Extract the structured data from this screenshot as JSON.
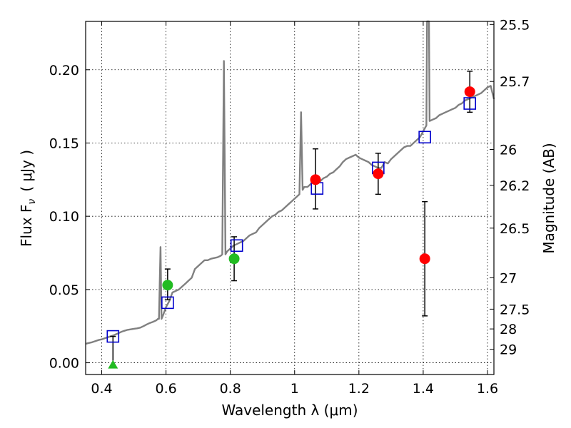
{
  "chart_data": {
    "type": "scatter",
    "title": "",
    "xlabel": "Wavelength  λ (μm)",
    "ylabel_left": "Flux  F",
    "ylabel_left_sub": "ν",
    "ylabel_left_unit": "( μJy )",
    "ylabel_right": "Magnitude (AB)",
    "xlim": [
      0.35,
      1.62
    ],
    "ylim": [
      -0.008,
      0.233
    ],
    "grid": true,
    "x_ticks": [
      0.4,
      0.6,
      0.8,
      1.0,
      1.2,
      1.4,
      1.6
    ],
    "x_tick_labels": [
      "0.4",
      "0.6",
      "0.8",
      "1",
      "1.2",
      "1.4",
      "1.6"
    ],
    "y_ticks": [
      0.0,
      0.05,
      0.1,
      0.15,
      0.2
    ],
    "y_tick_labels": [
      "0.00",
      "0.05",
      "0.10",
      "0.15",
      "0.20"
    ],
    "right_ticks": [
      {
        "label": "25.5",
        "flux": 0.2309
      },
      {
        "label": "25.7",
        "flux": 0.192
      },
      {
        "label": "26",
        "flux": 0.1456
      },
      {
        "label": "26.2",
        "flux": 0.1211
      },
      {
        "label": "26.5",
        "flux": 0.0919
      },
      {
        "label": "27",
        "flux": 0.058
      },
      {
        "label": "27.5",
        "flux": 0.0366
      },
      {
        "label": "28",
        "flux": 0.0231
      },
      {
        "label": "29",
        "flux": 0.0092
      }
    ],
    "colors": {
      "model": "#808080",
      "red": "#ff0000",
      "green": "#22bb22",
      "box": "#0000cc",
      "errorbar": "#000000"
    },
    "series": [
      {
        "kind": "model_spectrum",
        "points": [
          [
            0.35,
            0.013
          ],
          [
            0.36,
            0.0135
          ],
          [
            0.37,
            0.014
          ],
          [
            0.38,
            0.0148
          ],
          [
            0.39,
            0.0155
          ],
          [
            0.4,
            0.016
          ],
          [
            0.41,
            0.0168
          ],
          [
            0.42,
            0.0175
          ],
          [
            0.43,
            0.0182
          ],
          [
            0.44,
            0.019
          ],
          [
            0.45,
            0.02
          ],
          [
            0.46,
            0.021
          ],
          [
            0.47,
            0.0218
          ],
          [
            0.48,
            0.0225
          ],
          [
            0.49,
            0.0228
          ],
          [
            0.5,
            0.0232
          ],
          [
            0.51,
            0.0235
          ],
          [
            0.52,
            0.024
          ],
          [
            0.53,
            0.025
          ],
          [
            0.54,
            0.0262
          ],
          [
            0.55,
            0.0272
          ],
          [
            0.56,
            0.028
          ],
          [
            0.57,
            0.029
          ],
          [
            0.575,
            0.03
          ],
          [
            0.578,
            0.03
          ],
          [
            0.583,
            0.079
          ],
          [
            0.586,
            0.03
          ],
          [
            0.59,
            0.032
          ],
          [
            0.6,
            0.038
          ],
          [
            0.61,
            0.042
          ],
          [
            0.62,
            0.048
          ],
          [
            0.63,
            0.049
          ],
          [
            0.64,
            0.05
          ],
          [
            0.65,
            0.052
          ],
          [
            0.66,
            0.054
          ],
          [
            0.67,
            0.056
          ],
          [
            0.68,
            0.058
          ],
          [
            0.69,
            0.064
          ],
          [
            0.7,
            0.066
          ],
          [
            0.71,
            0.068
          ],
          [
            0.72,
            0.07
          ],
          [
            0.73,
            0.07
          ],
          [
            0.74,
            0.071
          ],
          [
            0.75,
            0.0715
          ],
          [
            0.76,
            0.072
          ],
          [
            0.77,
            0.073
          ],
          [
            0.775,
            0.074
          ],
          [
            0.78,
            0.206
          ],
          [
            0.785,
            0.074
          ],
          [
            0.79,
            0.076
          ],
          [
            0.8,
            0.078
          ],
          [
            0.81,
            0.08
          ],
          [
            0.82,
            0.081
          ],
          [
            0.83,
            0.082
          ],
          [
            0.84,
            0.083
          ],
          [
            0.85,
            0.085
          ],
          [
            0.86,
            0.087
          ],
          [
            0.87,
            0.088
          ],
          [
            0.88,
            0.089
          ],
          [
            0.89,
            0.092
          ],
          [
            0.9,
            0.094
          ],
          [
            0.91,
            0.096
          ],
          [
            0.92,
            0.098
          ],
          [
            0.93,
            0.1
          ],
          [
            0.94,
            0.101
          ],
          [
            0.95,
            0.103
          ],
          [
            0.96,
            0.104
          ],
          [
            0.97,
            0.106
          ],
          [
            0.98,
            0.108
          ],
          [
            0.99,
            0.11
          ],
          [
            1.0,
            0.112
          ],
          [
            1.01,
            0.114
          ],
          [
            1.015,
            0.115
          ],
          [
            1.02,
            0.171
          ],
          [
            1.025,
            0.118
          ],
          [
            1.03,
            0.12
          ],
          [
            1.04,
            0.12
          ],
          [
            1.05,
            0.122
          ],
          [
            1.06,
            0.125
          ],
          [
            1.07,
            0.123
          ],
          [
            1.08,
            0.124
          ],
          [
            1.09,
            0.126
          ],
          [
            1.1,
            0.127
          ],
          [
            1.11,
            0.129
          ],
          [
            1.12,
            0.13
          ],
          [
            1.13,
            0.132
          ],
          [
            1.14,
            0.134
          ],
          [
            1.15,
            0.137
          ],
          [
            1.16,
            0.139
          ],
          [
            1.17,
            0.14
          ],
          [
            1.18,
            0.141
          ],
          [
            1.19,
            0.142
          ],
          [
            1.2,
            0.14
          ],
          [
            1.21,
            0.139
          ],
          [
            1.22,
            0.138
          ],
          [
            1.23,
            0.137
          ],
          [
            1.24,
            0.135
          ],
          [
            1.25,
            0.134
          ],
          [
            1.26,
            0.133
          ],
          [
            1.27,
            0.133
          ],
          [
            1.28,
            0.137
          ],
          [
            1.29,
            0.136
          ],
          [
            1.3,
            0.139
          ],
          [
            1.31,
            0.141
          ],
          [
            1.32,
            0.143
          ],
          [
            1.33,
            0.145
          ],
          [
            1.34,
            0.147
          ],
          [
            1.35,
            0.148
          ],
          [
            1.36,
            0.148
          ],
          [
            1.37,
            0.15
          ],
          [
            1.38,
            0.152
          ],
          [
            1.39,
            0.154
          ],
          [
            1.4,
            0.158
          ],
          [
            1.41,
            0.162
          ],
          [
            1.412,
            0.233
          ],
          [
            1.418,
            0.233
          ],
          [
            1.42,
            0.165
          ],
          [
            1.43,
            0.166
          ],
          [
            1.44,
            0.167
          ],
          [
            1.45,
            0.169
          ],
          [
            1.46,
            0.17
          ],
          [
            1.47,
            0.171
          ],
          [
            1.48,
            0.172
          ],
          [
            1.49,
            0.173
          ],
          [
            1.5,
            0.174
          ],
          [
            1.51,
            0.176
          ],
          [
            1.52,
            0.177
          ],
          [
            1.53,
            0.179
          ],
          [
            1.54,
            0.18
          ],
          [
            1.55,
            0.181
          ],
          [
            1.56,
            0.182
          ],
          [
            1.57,
            0.183
          ],
          [
            1.58,
            0.184
          ],
          [
            1.59,
            0.186
          ],
          [
            1.6,
            0.188
          ],
          [
            1.61,
            0.189
          ],
          [
            1.62,
            0.18
          ]
        ]
      },
      {
        "kind": "measured_red",
        "points": [
          {
            "x": 1.065,
            "y": 0.125,
            "err_lo": 0.02,
            "err_hi": 0.021
          },
          {
            "x": 1.26,
            "y": 0.129,
            "err_lo": 0.014,
            "err_hi": 0.014
          },
          {
            "x": 1.405,
            "y": 0.071,
            "err_lo": 0.039,
            "err_hi": 0.039
          },
          {
            "x": 1.545,
            "y": 0.185,
            "err_lo": 0.014,
            "err_hi": 0.014
          }
        ]
      },
      {
        "kind": "measured_green",
        "points": [
          {
            "x": 0.605,
            "y": 0.053,
            "err_lo": 0.01,
            "err_hi": 0.011
          },
          {
            "x": 0.812,
            "y": 0.071,
            "err_lo": 0.015,
            "err_hi": 0.015
          }
        ]
      },
      {
        "kind": "upper_limit_green",
        "points": [
          {
            "x": 0.435,
            "y": -0.002,
            "err_hi": 0.02
          }
        ]
      },
      {
        "kind": "model_boxes",
        "points": [
          {
            "x": 0.435,
            "y": 0.018
          },
          {
            "x": 0.605,
            "y": 0.041
          },
          {
            "x": 0.82,
            "y": 0.08
          },
          {
            "x": 1.07,
            "y": 0.119
          },
          {
            "x": 1.26,
            "y": 0.133
          },
          {
            "x": 1.405,
            "y": 0.154
          },
          {
            "x": 1.545,
            "y": 0.177
          }
        ]
      }
    ]
  }
}
